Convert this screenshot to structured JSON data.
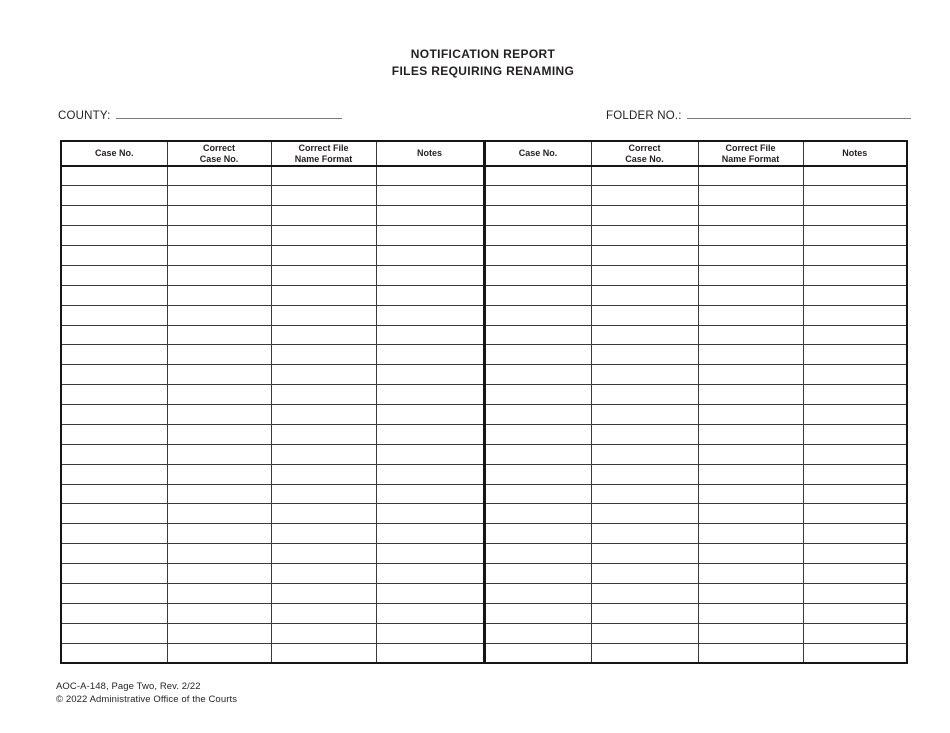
{
  "title": {
    "line1": "NOTIFICATION REPORT",
    "line2": "FILES REQUIRING RENAMING"
  },
  "fields": {
    "county_label": "COUNTY:",
    "county_value": "",
    "folder_label": "FOLDER NO.:",
    "folder_value": ""
  },
  "table": {
    "row_count": 25,
    "column_groups": 2,
    "headers": [
      "Case No.",
      "Correct\nCase No.",
      "Correct File\nName Format",
      "Notes",
      "Case No.",
      "Correct\nCase No.",
      "Correct File\nName Format",
      "Notes"
    ],
    "cell_values": ""
  },
  "footer": {
    "form_number": "AOC-A-148, Page Two, Rev. 2/22",
    "copyright": "© 2022 Administrative Office of the Courts"
  },
  "colors": {
    "ink": "#231f20",
    "grid_heavy": "#161616",
    "grid_light": "#3a3a3a",
    "fill_line": "#7a7a7a",
    "background": "#ffffff"
  }
}
